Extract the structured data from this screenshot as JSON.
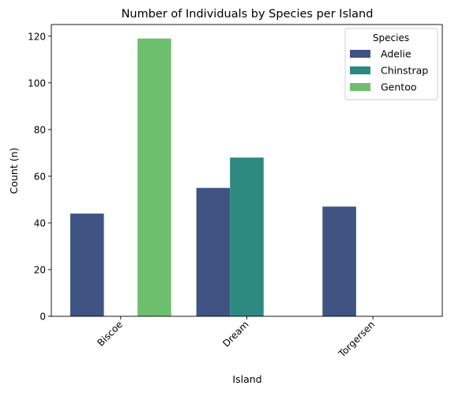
{
  "chart_data": {
    "type": "bar",
    "title": "Number of Individuals by Species per Island",
    "xlabel": "Island",
    "ylabel": "Count (n)",
    "categories": [
      "Biscoe",
      "Dream",
      "Torgersen"
    ],
    "series": [
      {
        "name": "Adelie",
        "values": [
          44,
          55,
          47
        ],
        "color": "#3f5483"
      },
      {
        "name": "Chinstrap",
        "values": [
          0,
          68,
          0
        ],
        "color": "#2d8a80"
      },
      {
        "name": "Gentoo",
        "values": [
          119,
          0,
          0
        ],
        "color": "#6dbf6d"
      }
    ],
    "ylim": [
      0,
      125
    ],
    "yticks": [
      0,
      20,
      40,
      60,
      80,
      100,
      120
    ],
    "xtick_rotation": 45,
    "grid": false,
    "legend": {
      "title": "Species",
      "placement": "top-right"
    }
  }
}
